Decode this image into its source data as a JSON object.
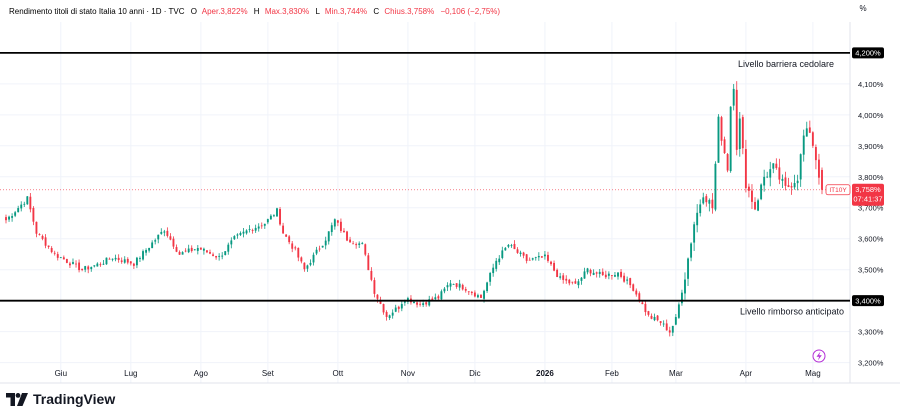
{
  "header": {
    "instrument": "Rendimento titoli di stato Italia 10 anni · 1D · TVC",
    "o_label": "O",
    "o_value": "Aper.3,822%",
    "h_label": "H",
    "h_value": "Max.3,830%",
    "l_label": "L",
    "l_value": "Min.3,744%",
    "c_label": "C",
    "c_value": "Chius.3,758%",
    "change": "−0,106 (−2,75%)",
    "percent_toggle": "%"
  },
  "price_tag": {
    "symbol": "IT10Y",
    "price": "3,758%",
    "countdown": "07:41:37"
  },
  "colors": {
    "up": "#089981",
    "down": "#f23645",
    "line": "#000000"
  },
  "brand": {
    "name": "TradingView"
  },
  "chart_data": {
    "type": "candlestick",
    "y_unit": "%",
    "ylim": [
      3.16,
      4.29
    ],
    "yticks": [
      "4,200%",
      "4,100%",
      "4,000%",
      "3,900%",
      "3,800%",
      "3,700%",
      "3,600%",
      "3,500%",
      "3,400%",
      "3,300%",
      "3,200%"
    ],
    "ytick_values": [
      4.2,
      4.1,
      4.0,
      3.9,
      3.8,
      3.7,
      3.6,
      3.5,
      3.4,
      3.3,
      3.2
    ],
    "x_months": [
      "Giu",
      "Lug",
      "Ago",
      "Set",
      "Ott",
      "Nov",
      "Dic",
      "2026",
      "Feb",
      "Mar",
      "Apr",
      "Mag"
    ],
    "x_month_day_index": [
      18,
      41,
      64,
      86,
      109,
      132,
      154,
      177,
      199,
      220,
      243,
      265
    ],
    "hlines": [
      {
        "value": 4.2,
        "label": "Livello barriera cedolare",
        "badge": "4,200%"
      },
      {
        "value": 3.4,
        "label": "Livello rimborso anticipato",
        "badge": "3,400%"
      }
    ],
    "anchors": [
      [
        0,
        3.66
      ],
      [
        7,
        3.73
      ],
      [
        10,
        3.62
      ],
      [
        16,
        3.55
      ],
      [
        25,
        3.5
      ],
      [
        31,
        3.52
      ],
      [
        35,
        3.54
      ],
      [
        42,
        3.52
      ],
      [
        52,
        3.63
      ],
      [
        57,
        3.55
      ],
      [
        63,
        3.57
      ],
      [
        70,
        3.54
      ],
      [
        75,
        3.6
      ],
      [
        80,
        3.63
      ],
      [
        85,
        3.65
      ],
      [
        89,
        3.69
      ],
      [
        91,
        3.62
      ],
      [
        95,
        3.56
      ],
      [
        98,
        3.5
      ],
      [
        105,
        3.6
      ],
      [
        108,
        3.66
      ],
      [
        112,
        3.6
      ],
      [
        117,
        3.58
      ],
      [
        121,
        3.43
      ],
      [
        125,
        3.35
      ],
      [
        129,
        3.38
      ],
      [
        131,
        3.41
      ],
      [
        136,
        3.39
      ],
      [
        142,
        3.41
      ],
      [
        146,
        3.46
      ],
      [
        151,
        3.44
      ],
      [
        156,
        3.41
      ],
      [
        161,
        3.53
      ],
      [
        165,
        3.58
      ],
      [
        171,
        3.53
      ],
      [
        177,
        3.54
      ],
      [
        182,
        3.47
      ],
      [
        187,
        3.45
      ],
      [
        191,
        3.5
      ],
      [
        196,
        3.48
      ],
      [
        201,
        3.49
      ],
      [
        206,
        3.44
      ],
      [
        211,
        3.35
      ],
      [
        215,
        3.33
      ],
      [
        218,
        3.3
      ],
      [
        220,
        3.34
      ],
      [
        223,
        3.48
      ],
      [
        226,
        3.65
      ],
      [
        229,
        3.75
      ],
      [
        232,
        3.7
      ],
      [
        234,
        3.98
      ],
      [
        237,
        3.83
      ],
      [
        238,
        4.03
      ],
      [
        239,
        4.1
      ],
      [
        240,
        3.9
      ],
      [
        241,
        3.98
      ],
      [
        243,
        3.78
      ],
      [
        246,
        3.7
      ],
      [
        249,
        3.8
      ],
      [
        252,
        3.83
      ],
      [
        256,
        3.76
      ],
      [
        260,
        3.8
      ],
      [
        262,
        3.93
      ],
      [
        264,
        3.95
      ],
      [
        266,
        3.86
      ],
      [
        268,
        3.758
      ]
    ],
    "last_candle": {
      "open": 3.822,
      "high": 3.83,
      "low": 3.744,
      "close": 3.758
    }
  }
}
